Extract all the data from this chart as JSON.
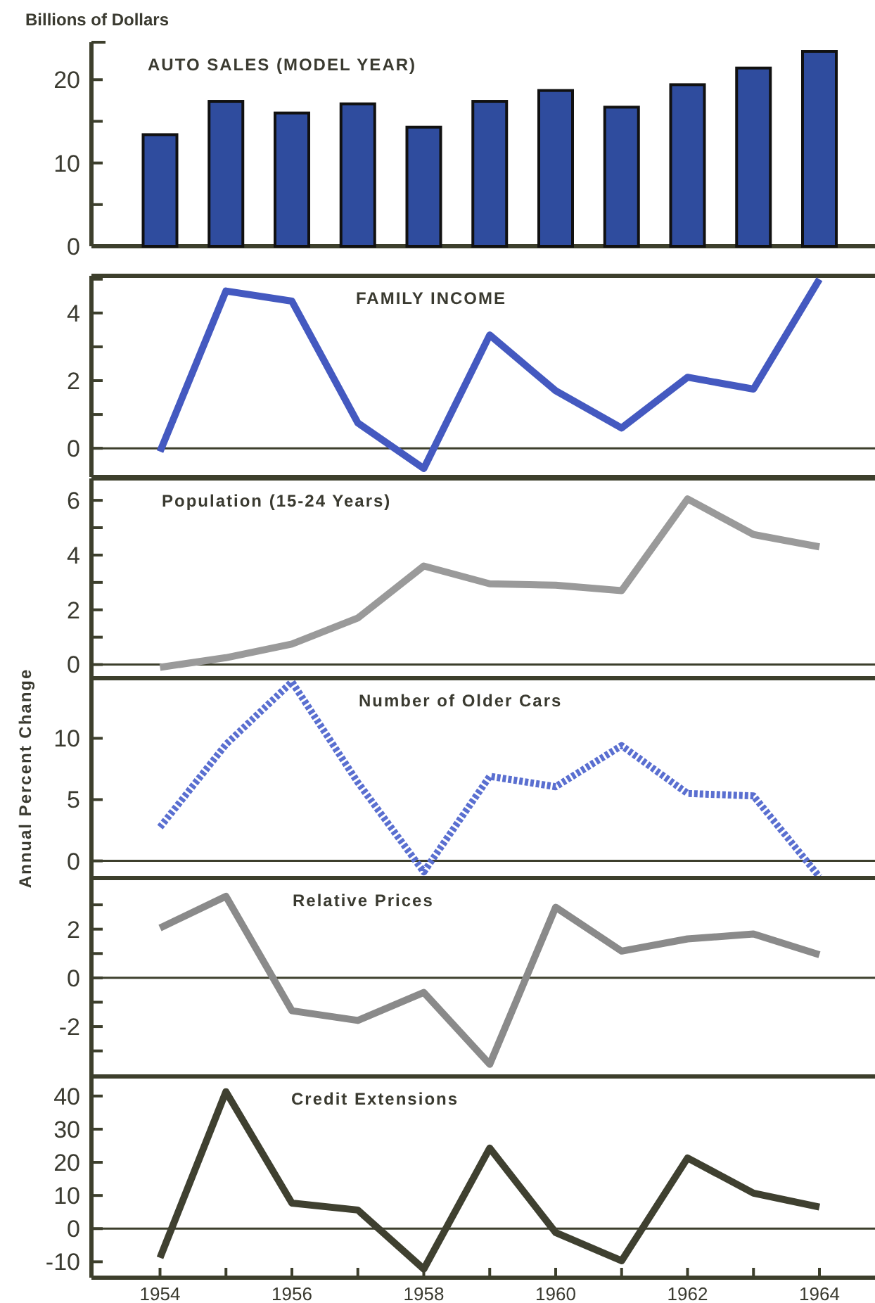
{
  "chart_data": [
    {
      "type": "bar",
      "title": "AUTO SALES  (MODEL YEAR)",
      "ylabel": "Billions of Dollars",
      "x": [
        1954,
        1955,
        1956,
        1957,
        1958,
        1959,
        1960,
        1961,
        1962,
        1963,
        1964
      ],
      "values": [
        13.4,
        17.4,
        16.0,
        17.1,
        14.3,
        17.4,
        18.7,
        16.7,
        19.4,
        21.4,
        23.4
      ],
      "color": "#2f4c9e",
      "xlim": [
        1952.96,
        1964.8
      ],
      "ylim": [
        0,
        24.5
      ],
      "yticks": [
        0,
        {
          "value": 5,
          "label": null
        },
        10,
        {
          "value": 15,
          "label": null
        },
        20
      ],
      "tick_labels": "y"
    },
    {
      "type": "line",
      "title": "FAMILY INCOME",
      "x": [
        1954,
        1955,
        1956,
        1957,
        1958,
        1959,
        1960,
        1961,
        1962,
        1963,
        1964
      ],
      "values": [
        -0.1,
        4.65,
        4.35,
        0.75,
        -0.6,
        3.35,
        1.7,
        0.6,
        2.1,
        1.75,
        5.0
      ],
      "color": "#4459c0",
      "xlim": [
        1952.96,
        1964.8
      ],
      "ylim": [
        -0.85,
        5.1
      ],
      "yticks": [
        0,
        {
          "value": 1,
          "label": null
        },
        2,
        {
          "value": 3,
          "label": null
        },
        4,
        {
          "value": 5,
          "label": null
        }
      ],
      "tick_labels": "y",
      "ref_lines": [
        {
          "axis": "y",
          "value": 0
        }
      ]
    },
    {
      "type": "line",
      "title": "Population  (15-24 Years)",
      "x": [
        1954,
        1955,
        1956,
        1957,
        1958,
        1959,
        1960,
        1961,
        1962,
        1963,
        1964
      ],
      "values": [
        -0.1,
        0.25,
        0.75,
        1.7,
        3.6,
        2.95,
        2.9,
        2.7,
        6.05,
        4.75,
        4.3
      ],
      "color": "#9a9a9a",
      "xlim": [
        1952.96,
        1964.8
      ],
      "ylim": [
        -0.5,
        6.8
      ],
      "yticks": [
        0,
        {
          "value": 1,
          "label": null
        },
        2,
        {
          "value": 3,
          "label": null
        },
        4,
        {
          "value": 5,
          "label": null
        },
        6
      ],
      "tick_labels": "y",
      "ref_lines": [
        {
          "axis": "y",
          "value": 0
        }
      ]
    },
    {
      "type": "line",
      "title": "Number of Older Cars",
      "ylabel": "Annual Percent Change",
      "x": [
        1954,
        1955,
        1956,
        1957,
        1958,
        1959,
        1960,
        1961,
        1962,
        1963,
        1964
      ],
      "values": [
        2.75,
        9.5,
        14.6,
        6.4,
        -0.9,
        6.9,
        6.05,
        9.4,
        5.5,
        5.3,
        -1.3
      ],
      "color": "#5a6fd0",
      "line_style": "dashed",
      "xlim": [
        1952.96,
        1964.8
      ],
      "ylim": [
        -1.4,
        14.9
      ],
      "yticks": [
        0,
        5,
        10
      ],
      "tick_labels": "y",
      "ref_lines": [
        {
          "axis": "y",
          "value": 0
        }
      ]
    },
    {
      "type": "line",
      "title": "Relative Prices",
      "x": [
        1954,
        1955,
        1956,
        1957,
        1958,
        1959,
        1960,
        1961,
        1962,
        1963,
        1964
      ],
      "values": [
        2.05,
        3.35,
        -1.35,
        -1.75,
        -0.6,
        -3.55,
        2.9,
        1.1,
        1.6,
        1.8,
        0.95
      ],
      "color": "#8a8a8a",
      "xlim": [
        1952.96,
        1964.8
      ],
      "ylim": [
        -4.05,
        4.1
      ],
      "yticks": [
        {
          "value": -3,
          "label": null
        },
        -2,
        {
          "value": -1,
          "label": null
        },
        0,
        {
          "value": 1,
          "label": null
        },
        2,
        {
          "value": 3,
          "label": null
        }
      ],
      "tick_labels": "y",
      "ref_lines": [
        {
          "axis": "y",
          "value": 0
        }
      ]
    },
    {
      "type": "line",
      "title": "Credit Extensions",
      "x": [
        1954,
        1955,
        1956,
        1957,
        1958,
        1959,
        1960,
        1961,
        1962,
        1963,
        1964
      ],
      "values": [
        -8.8,
        41.3,
        7.7,
        5.6,
        -12.2,
        24.3,
        -1.2,
        -9.7,
        21.3,
        10.7,
        6.5
      ],
      "color": "#3f4030",
      "xlim": [
        1952.96,
        1964.8
      ],
      "ylim": [
        -14.8,
        45.9
      ],
      "yticks": [
        -10,
        0,
        10,
        20,
        30,
        40
      ],
      "xticks": [
        1954,
        {
          "value": 1955,
          "label": null
        },
        1956,
        {
          "value": 1957,
          "label": null
        },
        1958,
        {
          "value": 1959,
          "label": null
        },
        1960,
        {
          "value": 1961,
          "label": null
        },
        1962,
        {
          "value": 1963,
          "label": null
        },
        1964
      ],
      "ref_lines": [
        {
          "axis": "y",
          "value": 0
        }
      ]
    }
  ]
}
